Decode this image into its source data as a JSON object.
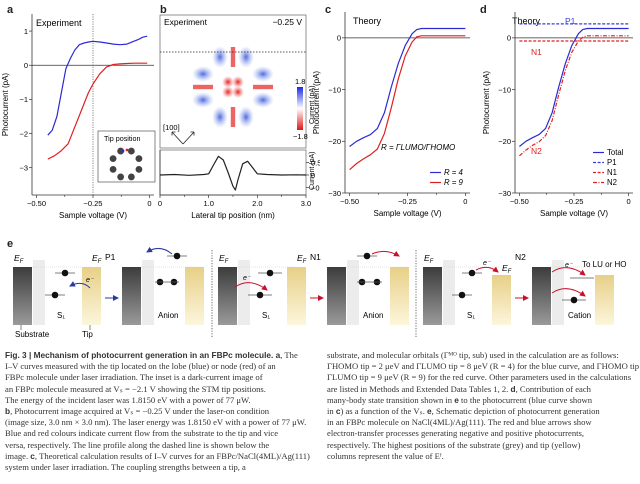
{
  "panels": {
    "a": {
      "label": "a",
      "tag": "Experiment",
      "inset_title": "Tip position"
    },
    "b": {
      "label": "b",
      "tag": "Experiment",
      "voltage": "−0.25 V",
      "direction": "[100]",
      "colorbar": {
        "max": "1.8",
        "min": "−1.8",
        "label": "Current (pA)"
      },
      "profile_ylabel": "Current (pA)"
    },
    "c": {
      "label": "c",
      "tag": "Theory",
      "formula": "R = ΓLUMO/ΓHOMO"
    },
    "d": {
      "label": "d",
      "tag": "Theory",
      "annot_p1": "P1",
      "annot_n1": "N1",
      "annot_n2": "N2"
    },
    "e": {
      "label": "e",
      "sections": [
        {
          "title": "P1",
          "left_label": "S₁",
          "right_label": "Anion"
        },
        {
          "title": "N1",
          "left_label": "S₁",
          "right_label": "Anion"
        },
        {
          "title": "N2",
          "left_label": "S₁",
          "right_label": "Cation",
          "extra": "To LU or HO"
        }
      ],
      "ef": "E",
      "ef_sub": "F",
      "electron": "e⁻",
      "substrate": "Substrate",
      "tip": "Tip"
    }
  },
  "chart_data": [
    {
      "id": "a",
      "type": "line",
      "title": "Experiment",
      "xlabel": "Sample voltage (V)",
      "ylabel": "Photocurrent (pA)",
      "xlim": [
        -0.52,
        0.02
      ],
      "ylim": [
        -3.8,
        1.5
      ],
      "xticks": [
        -0.5,
        -0.25,
        0
      ],
      "xtick_labels": [
        "−0.50",
        "−0.25",
        "0"
      ],
      "yticks": [
        -3,
        -2,
        -1,
        0,
        1
      ],
      "ytick_labels": [
        "−3",
        "−2",
        "−1",
        "0",
        "1"
      ],
      "vline": -0.25,
      "hline": 0,
      "series": [
        {
          "name": "lobe (blue)",
          "color": "#2b2bd6",
          "x": [
            -0.45,
            -0.43,
            -0.41,
            -0.39,
            -0.37,
            -0.35,
            -0.33,
            -0.31,
            -0.29,
            -0.27,
            -0.25,
            -0.22,
            -0.19,
            -0.16,
            -0.13,
            -0.1,
            -0.07,
            -0.05,
            -0.03,
            -0.01
          ],
          "y": [
            -2.05,
            -1.9,
            -1.5,
            -0.8,
            -0.1,
            0.2,
            0.45,
            0.6,
            0.65,
            0.68,
            0.7,
            0.68,
            0.65,
            0.62,
            0.6,
            0.62,
            0.7,
            0.75,
            0.82,
            0.85
          ]
        },
        {
          "name": "node (red)",
          "color": "#e02020",
          "x": [
            -0.45,
            -0.42,
            -0.39,
            -0.36,
            -0.33,
            -0.3,
            -0.27,
            -0.25,
            -0.22,
            -0.19,
            -0.16,
            -0.13,
            -0.1,
            -0.07,
            -0.04,
            -0.01
          ],
          "y": [
            -2.75,
            -2.65,
            -2.5,
            -2.3,
            -1.8,
            -1.3,
            -0.8,
            -0.55,
            -0.25,
            -0.05,
            0.02,
            0.04,
            0.05,
            0.06,
            0.06,
            0.06
          ]
        }
      ]
    },
    {
      "id": "b-profile",
      "type": "line",
      "xlabel": "Lateral tip position (nm)",
      "ylabel": "Current (pA)",
      "xlim": [
        0,
        3.0
      ],
      "ylim": [
        -0.8,
        1.0
      ],
      "xticks": [
        0,
        1.0,
        2.0,
        3.0
      ],
      "xtick_labels": [
        "0",
        "1.0",
        "2.0",
        "3.0"
      ],
      "yticks": [
        0.5,
        0,
        -0.5
      ],
      "ytick_labels": [
        "0.5",
        "0",
        "−0.5"
      ],
      "series": [
        {
          "name": "profile",
          "color": "#222222",
          "x": [
            0,
            0.3,
            0.6,
            0.9,
            1.0,
            1.1,
            1.2,
            1.3,
            1.4,
            1.5,
            1.55,
            1.6,
            1.7,
            1.8,
            1.9,
            2.0,
            2.2,
            2.5,
            2.8,
            3.0
          ],
          "y": [
            0,
            0.02,
            -0.01,
            0.02,
            0.05,
            0.4,
            0.75,
            0.6,
            0.1,
            -0.45,
            -0.6,
            -0.2,
            0.45,
            0.55,
            0.3,
            0.05,
            0.02,
            0,
            0.01,
            0
          ]
        }
      ]
    },
    {
      "id": "c",
      "type": "line",
      "title": "Theory",
      "xlabel": "Sample voltage (V)",
      "ylabel": "Photocurrent (pA)",
      "xlim": [
        -0.52,
        0.02
      ],
      "ylim": [
        -30,
        5
      ],
      "xticks": [
        -0.5,
        -0.25,
        0
      ],
      "xtick_labels": [
        "−0.50",
        "−0.25",
        "0"
      ],
      "yticks": [
        -30,
        -20,
        -10,
        0
      ],
      "ytick_labels": [
        "−30",
        "−20",
        "−10",
        "0"
      ],
      "hline": 0,
      "legend": {
        "placement": "bottom-right",
        "entries": [
          "R = 4",
          "R = 9"
        ]
      },
      "series": [
        {
          "name": "R = 4",
          "color": "#2b2bd6",
          "x": [
            -0.5,
            -0.47,
            -0.44,
            -0.41,
            -0.38,
            -0.35,
            -0.32,
            -0.29,
            -0.26,
            -0.23,
            -0.21,
            -0.19,
            -0.17,
            -0.1,
            0
          ],
          "y": [
            -21,
            -20,
            -19.3,
            -18.7,
            -17.5,
            -14.5,
            -9.5,
            -5,
            -1.5,
            0.8,
            1.6,
            1.8,
            1.8,
            1.8,
            1.8
          ]
        },
        {
          "name": "R = 9",
          "color": "#e02020",
          "x": [
            -0.5,
            -0.47,
            -0.44,
            -0.41,
            -0.38,
            -0.35,
            -0.32,
            -0.29,
            -0.26,
            -0.23,
            -0.21,
            -0.19,
            -0.17,
            -0.1,
            0
          ],
          "y": [
            -25.5,
            -24.3,
            -23.4,
            -22.6,
            -21.5,
            -18.5,
            -13.5,
            -8,
            -3.5,
            -0.8,
            0.2,
            0.4,
            0.4,
            0.4,
            0.4
          ]
        }
      ]
    },
    {
      "id": "d",
      "type": "line",
      "title": "Theory",
      "xlabel": "Sample voltage (V)",
      "ylabel": "Photocurrent (pA)",
      "xlim": [
        -0.52,
        0.02
      ],
      "ylim": [
        -30,
        5
      ],
      "xticks": [
        -0.5,
        -0.25,
        0
      ],
      "xtick_labels": [
        "−0.50",
        "−0.25",
        "0"
      ],
      "yticks": [
        -30,
        -20,
        -10,
        0
      ],
      "ytick_labels": [
        "−30",
        "−20",
        "−10",
        "0"
      ],
      "hline": 0,
      "legend": {
        "placement": "bottom-right",
        "entries": [
          "Total",
          "P1",
          "N1",
          "N2"
        ]
      },
      "series": [
        {
          "name": "Total",
          "color": "#2b2bd6",
          "dash": "solid",
          "x": [
            -0.5,
            -0.47,
            -0.44,
            -0.41,
            -0.38,
            -0.35,
            -0.32,
            -0.29,
            -0.26,
            -0.23,
            -0.21,
            -0.19,
            -0.17,
            -0.1,
            0
          ],
          "y": [
            -21,
            -20,
            -19.3,
            -18.7,
            -17.5,
            -14.5,
            -9.5,
            -5,
            -1.5,
            0.8,
            1.6,
            1.8,
            1.8,
            1.8,
            1.8
          ]
        },
        {
          "name": "P1",
          "color": "#3a3ae0",
          "dash": "dashed",
          "x": [
            -0.5,
            0
          ],
          "y": [
            2.7,
            2.7
          ]
        },
        {
          "name": "N1",
          "color": "#e02020",
          "dash": "dashed",
          "x": [
            -0.5,
            -0.3,
            -0.27,
            -0.24,
            -0.22,
            -0.2,
            0
          ],
          "y": [
            -0.6,
            -0.6,
            -0.6,
            -0.6,
            -0.6,
            -0.6,
            -0.6
          ]
        },
        {
          "name": "N2",
          "color": "#e02020",
          "dash": "dashdot",
          "x": [
            -0.5,
            -0.47,
            -0.44,
            -0.41,
            -0.38,
            -0.35,
            -0.32,
            -0.29,
            -0.26,
            -0.23,
            -0.21,
            -0.19,
            -0.17,
            -0.1,
            0
          ],
          "y": [
            -22.8,
            -21.7,
            -20.8,
            -20.1,
            -18.9,
            -16,
            -11,
            -6.3,
            -2.8,
            -0.6,
            0.1,
            0.4,
            0.4,
            0.4,
            0.4
          ]
        }
      ]
    }
  ],
  "caption": {
    "left": [
      [
        {
          "b": "Fig. 3 | Mechanism of photocurrent generation in an FBPc molecule. a"
        },
        {
          "t": ", The"
        }
      ],
      [
        {
          "t": "I–V curves measured with the tip located on the lobe (blue) or node (red) of an"
        }
      ],
      [
        {
          "t": "FBPc molecule under laser irradiation. The inset is a dark-current image of"
        }
      ],
      [
        {
          "t": "an FBPc molecule measured at Vₛ = −2.1 V showing the STM tip positions."
        }
      ],
      [
        {
          "t": "The energy of the incident laser was 1.8150 eV with a power of 77 μW."
        }
      ],
      [
        {
          "b": "b"
        },
        {
          "t": ", Photocurrent image acquired at Vₛ = −0.25 V under the laser-on condition"
        }
      ],
      [
        {
          "t": "(image size, 3.0 nm × 3.0 nm). The laser energy was 1.8150 eV with a power of 77 μW."
        }
      ],
      [
        {
          "t": "Blue and red colours indicate current flow from the substrate to the tip and vice"
        }
      ],
      [
        {
          "t": "versa, respectively. The line profile along the dashed line is shown below the"
        }
      ],
      [
        {
          "t": "image. "
        },
        {
          "b": "c"
        },
        {
          "t": ", Theoretical calculation results of I–V curves for an FBPc/NaCl(4ML)/Ag(111)"
        }
      ],
      [
        {
          "t": "system under laser irradiation. The coupling strengths between a tip, a"
        }
      ]
    ],
    "right": [
      [
        {
          "t": "substrate, and molecular orbitals (Γᴹᴼ tip, sub) used in the calculation are as follows:"
        }
      ],
      [
        {
          "t": "ΓHOMO tip = 2 μeV and ΓLUMO tip = 8 μeV (R = 4) for the blue curve, and ΓHOMO tip = 1 μeV and"
        }
      ],
      [
        {
          "t": "ΓLUMO tip = 9 μeV (R = 9) for the red curve. Other parameters used in the calculations"
        }
      ],
      [
        {
          "t": "are listed in Methods and Extended Data Tables 1, 2. "
        },
        {
          "b": "d"
        },
        {
          "t": ", Contribution of each"
        }
      ],
      [
        {
          "t": "many-body state transition shown in "
        },
        {
          "b": "e"
        },
        {
          "t": " to the photocurrent (blue curve shown"
        }
      ],
      [
        {
          "t": "in "
        },
        {
          "b": "c"
        },
        {
          "t": ") as a function of the Vₛ. "
        },
        {
          "b": "e"
        },
        {
          "t": ", Schematic depiction of photocurrent generation"
        }
      ],
      [
        {
          "t": "in an FBPc molecule on NaCl(4ML)/Ag(111). The red and blue arrows show"
        }
      ],
      [
        {
          "t": "electron-transfer processes generating negative and positive photocurrents,"
        }
      ],
      [
        {
          "t": "respectively. The highest positions of the substrate (grey) and tip (yellow)"
        }
      ],
      [
        {
          "t": "columns represent the value of Eᶠ."
        }
      ]
    ]
  }
}
